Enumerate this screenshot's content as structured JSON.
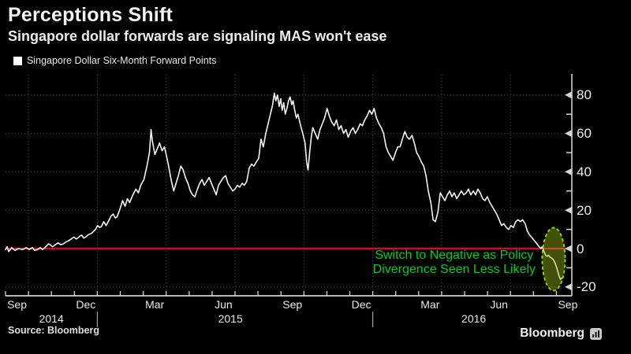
{
  "header": {
    "title": "Perceptions Shift",
    "subtitle": "Singapore dollar forwards are signaling MAS won't ease"
  },
  "legend": {
    "label": "Singapore Dollar Six-Month Forward Points"
  },
  "annotation": {
    "line1": "Switch to Negative as Policy",
    "line2": "Divergence Seen Less Likely"
  },
  "footer": {
    "source_label": "Source: Bloomberg",
    "brand": "Bloomberg"
  },
  "colors": {
    "background": "#000000",
    "series_line": "#f3f3f3",
    "zero_line": "#e10028",
    "grid": "#4f4f4f",
    "axis": "#cecece",
    "tick": "#d5d5d5",
    "year_divider": "#9a9a9a",
    "annotation_green": "#00cc22",
    "ellipse_stroke": "#8fce00",
    "ellipse_fill": "rgba(160,190,20,0.42)"
  },
  "chart_data": {
    "type": "line",
    "title": "Perceptions Shift",
    "subtitle": "Singapore dollar forwards are signaling MAS won't ease",
    "x_unit": "months since Sep 1, 2014",
    "x_range": [
      0,
      24.35
    ],
    "ylim": [
      -25,
      90
    ],
    "grid": "dotted",
    "legend_position": "top-left",
    "y_ticks": [
      80,
      60,
      40,
      20,
      0,
      -20
    ],
    "y_minor_ticks": [
      70,
      50,
      30,
      10,
      -10
    ],
    "zero_line_value": 0,
    "x_labels": [
      {
        "m": 0.5,
        "label": "Sep"
      },
      {
        "m": 3.5,
        "label": "Dec"
      },
      {
        "m": 6.5,
        "label": "Mar"
      },
      {
        "m": 9.5,
        "label": "Jun"
      },
      {
        "m": 12.5,
        "label": "Sep"
      },
      {
        "m": 15.5,
        "label": "Dec"
      },
      {
        "m": 18.5,
        "label": "Mar"
      },
      {
        "m": 21.5,
        "label": "Jun"
      },
      {
        "m": 24.5,
        "label": "Sep"
      }
    ],
    "year_labels": [
      {
        "m": 2.0,
        "label": "2014"
      },
      {
        "m": 9.8,
        "label": "2015"
      },
      {
        "m": 20.4,
        "label": "2016"
      }
    ],
    "year_dividers_m": [
      4,
      16
    ],
    "grid_verticals_m": [
      1,
      4,
      7,
      10,
      13,
      16,
      19,
      22
    ],
    "highlight_ellipse": {
      "m_center": 23.88,
      "v_center": -5.5,
      "m_radius": 0.5,
      "v_radius": 16.4
    },
    "series": [
      {
        "name": "Singapore Dollar Six-Month Forward Points",
        "color": "#f3f3f3",
        "points": [
          [
            0,
            -0.5
          ],
          [
            0.07,
            1
          ],
          [
            0.14,
            -1.5
          ],
          [
            0.27,
            0.5
          ],
          [
            0.41,
            -1
          ],
          [
            0.55,
            0
          ],
          [
            0.75,
            -0.5
          ],
          [
            0.9,
            0.5
          ],
          [
            1.03,
            -0.5
          ],
          [
            1.17,
            0.5
          ],
          [
            1.27,
            -1
          ],
          [
            1.4,
            -0.5
          ],
          [
            1.51,
            0.5
          ],
          [
            1.62,
            -0.5
          ],
          [
            1.71,
            0.5
          ],
          [
            1.88,
            2.5
          ],
          [
            2.05,
            1
          ],
          [
            2.17,
            2
          ],
          [
            2.29,
            3
          ],
          [
            2.41,
            2
          ],
          [
            2.53,
            2.5
          ],
          [
            2.64,
            3.5
          ],
          [
            2.74,
            4
          ],
          [
            2.86,
            5
          ],
          [
            2.98,
            6
          ],
          [
            3.08,
            5
          ],
          [
            3.15,
            5.5
          ],
          [
            3.24,
            6.5
          ],
          [
            3.32,
            7
          ],
          [
            3.4,
            5.5
          ],
          [
            3.49,
            6
          ],
          [
            3.58,
            7
          ],
          [
            3.66,
            7.5
          ],
          [
            3.75,
            8
          ],
          [
            3.84,
            9
          ],
          [
            3.92,
            10
          ],
          [
            4.01,
            12
          ],
          [
            4.1,
            11
          ],
          [
            4.18,
            11.5
          ],
          [
            4.28,
            14
          ],
          [
            4.38,
            12
          ],
          [
            4.52,
            15
          ],
          [
            4.6,
            17
          ],
          [
            4.69,
            18
          ],
          [
            4.78,
            16
          ],
          [
            4.86,
            16.5
          ],
          [
            4.97,
            20
          ],
          [
            5.1,
            25
          ],
          [
            5.21,
            22
          ],
          [
            5.31,
            26
          ],
          [
            5.41,
            24
          ],
          [
            5.55,
            28
          ],
          [
            5.68,
            31
          ],
          [
            5.79,
            29
          ],
          [
            5.89,
            33
          ],
          [
            6.03,
            36
          ],
          [
            6.16,
            43
          ],
          [
            6.27,
            50
          ],
          [
            6.34,
            62
          ],
          [
            6.4,
            56
          ],
          [
            6.51,
            49
          ],
          [
            6.61,
            52
          ],
          [
            6.71,
            55
          ],
          [
            6.82,
            51
          ],
          [
            6.92,
            53
          ],
          [
            7.02,
            48
          ],
          [
            7.12,
            42
          ],
          [
            7.23,
            35
          ],
          [
            7.33,
            30
          ],
          [
            7.43,
            34
          ],
          [
            7.53,
            38
          ],
          [
            7.64,
            43
          ],
          [
            7.74,
            41
          ],
          [
            7.84,
            37
          ],
          [
            7.95,
            34
          ],
          [
            8.05,
            30
          ],
          [
            8.15,
            28
          ],
          [
            8.25,
            27
          ],
          [
            8.36,
            31
          ],
          [
            8.46,
            34
          ],
          [
            8.56,
            36
          ],
          [
            8.66,
            33
          ],
          [
            8.77,
            35
          ],
          [
            8.87,
            37
          ],
          [
            8.97,
            34
          ],
          [
            9.08,
            31
          ],
          [
            9.18,
            28
          ],
          [
            9.28,
            33
          ],
          [
            9.38,
            35
          ],
          [
            9.49,
            37
          ],
          [
            9.59,
            38
          ],
          [
            9.69,
            34
          ],
          [
            9.79,
            32
          ],
          [
            9.9,
            30
          ],
          [
            10,
            31
          ],
          [
            10.1,
            33
          ],
          [
            10.2,
            32
          ],
          [
            10.31,
            34
          ],
          [
            10.41,
            33
          ],
          [
            10.51,
            35
          ],
          [
            10.62,
            42
          ],
          [
            10.72,
            44
          ],
          [
            10.82,
            43
          ],
          [
            10.92,
            45
          ],
          [
            11.03,
            47
          ],
          [
            11.13,
            57
          ],
          [
            11.23,
            53
          ],
          [
            11.34,
            60
          ],
          [
            11.44,
            65
          ],
          [
            11.54,
            70
          ],
          [
            11.64,
            75
          ],
          [
            11.71,
            81
          ],
          [
            11.78,
            77
          ],
          [
            11.85,
            80
          ],
          [
            11.92,
            74
          ],
          [
            11.99,
            78
          ],
          [
            12.05,
            72
          ],
          [
            12.12,
            76
          ],
          [
            12.19,
            70
          ],
          [
            12.26,
            73
          ],
          [
            12.33,
            77
          ],
          [
            12.4,
            79
          ],
          [
            12.47,
            75
          ],
          [
            12.53,
            77
          ],
          [
            12.6,
            72
          ],
          [
            12.67,
            68
          ],
          [
            12.74,
            70
          ],
          [
            12.84,
            65
          ],
          [
            12.95,
            60
          ],
          [
            13.05,
            55
          ],
          [
            13.12,
            45
          ],
          [
            13.18,
            41
          ],
          [
            13.25,
            50
          ],
          [
            13.32,
            58
          ],
          [
            13.39,
            63
          ],
          [
            13.49,
            60
          ],
          [
            13.6,
            57
          ],
          [
            13.7,
            62
          ],
          [
            13.8,
            65
          ],
          [
            13.9,
            68
          ],
          [
            14.01,
            73
          ],
          [
            14.11,
            69
          ],
          [
            14.21,
            66
          ],
          [
            14.32,
            64
          ],
          [
            14.42,
            67
          ],
          [
            14.52,
            62
          ],
          [
            14.62,
            64
          ],
          [
            14.73,
            60
          ],
          [
            14.83,
            62
          ],
          [
            14.93,
            58
          ],
          [
            15.03,
            61
          ],
          [
            15.14,
            63
          ],
          [
            15.24,
            60
          ],
          [
            15.34,
            62
          ],
          [
            15.45,
            65
          ],
          [
            15.55,
            64
          ],
          [
            15.65,
            67
          ],
          [
            15.75,
            69
          ],
          [
            15.86,
            72
          ],
          [
            15.96,
            70
          ],
          [
            16.06,
            73
          ],
          [
            16.16,
            68
          ],
          [
            16.27,
            65
          ],
          [
            16.37,
            63
          ],
          [
            16.47,
            60
          ],
          [
            16.58,
            53
          ],
          [
            16.68,
            50
          ],
          [
            16.78,
            48
          ],
          [
            16.88,
            46
          ],
          [
            16.99,
            50
          ],
          [
            17.09,
            53
          ],
          [
            17.19,
            53
          ],
          [
            17.29,
            57
          ],
          [
            17.4,
            61
          ],
          [
            17.5,
            58
          ],
          [
            17.6,
            57
          ],
          [
            17.71,
            59
          ],
          [
            17.81,
            55
          ],
          [
            17.91,
            50
          ],
          [
            18.01,
            48
          ],
          [
            18.12,
            45
          ],
          [
            18.22,
            43
          ],
          [
            18.32,
            38
          ],
          [
            18.42,
            30
          ],
          [
            18.53,
            24
          ],
          [
            18.63,
            15
          ],
          [
            18.73,
            14
          ],
          [
            18.84,
            19
          ],
          [
            18.94,
            29
          ],
          [
            19.04,
            27
          ],
          [
            19.14,
            25
          ],
          [
            19.25,
            28
          ],
          [
            19.35,
            30
          ],
          [
            19.45,
            27
          ],
          [
            19.55,
            29
          ],
          [
            19.66,
            26
          ],
          [
            19.76,
            28
          ],
          [
            19.86,
            30
          ],
          [
            19.97,
            28
          ],
          [
            20.07,
            29
          ],
          [
            20.17,
            31
          ],
          [
            20.27,
            28
          ],
          [
            20.38,
            30
          ],
          [
            20.48,
            28
          ],
          [
            20.58,
            31
          ],
          [
            20.68,
            29
          ],
          [
            20.79,
            26
          ],
          [
            20.89,
            25
          ],
          [
            20.99,
            27
          ],
          [
            21.1,
            24
          ],
          [
            21.2,
            22
          ],
          [
            21.3,
            20
          ],
          [
            21.4,
            18
          ],
          [
            21.51,
            15
          ],
          [
            21.61,
            12
          ],
          [
            21.71,
            13
          ],
          [
            21.82,
            11
          ],
          [
            21.92,
            10
          ],
          [
            22.02,
            12
          ],
          [
            22.12,
            11
          ],
          [
            22.23,
            14
          ],
          [
            22.33,
            15
          ],
          [
            22.43,
            14
          ],
          [
            22.53,
            15
          ],
          [
            22.64,
            13
          ],
          [
            22.74,
            9
          ],
          [
            22.84,
            7
          ],
          [
            22.95,
            5.5
          ],
          [
            23.05,
            4
          ],
          [
            23.15,
            2.5
          ],
          [
            23.25,
            1
          ],
          [
            23.32,
            0
          ],
          [
            23.39,
            1
          ],
          [
            23.46,
            -1.5
          ],
          [
            23.53,
            -3.5
          ],
          [
            23.6,
            -4
          ],
          [
            23.66,
            -3.5
          ],
          [
            23.73,
            -4.5
          ],
          [
            23.8,
            -5
          ],
          [
            23.88,
            -6
          ],
          [
            23.96,
            -8
          ],
          [
            24.04,
            -11
          ],
          [
            24.12,
            -14.5
          ],
          [
            24.18,
            -16
          ],
          [
            24.24,
            -15.3
          ]
        ]
      }
    ]
  }
}
